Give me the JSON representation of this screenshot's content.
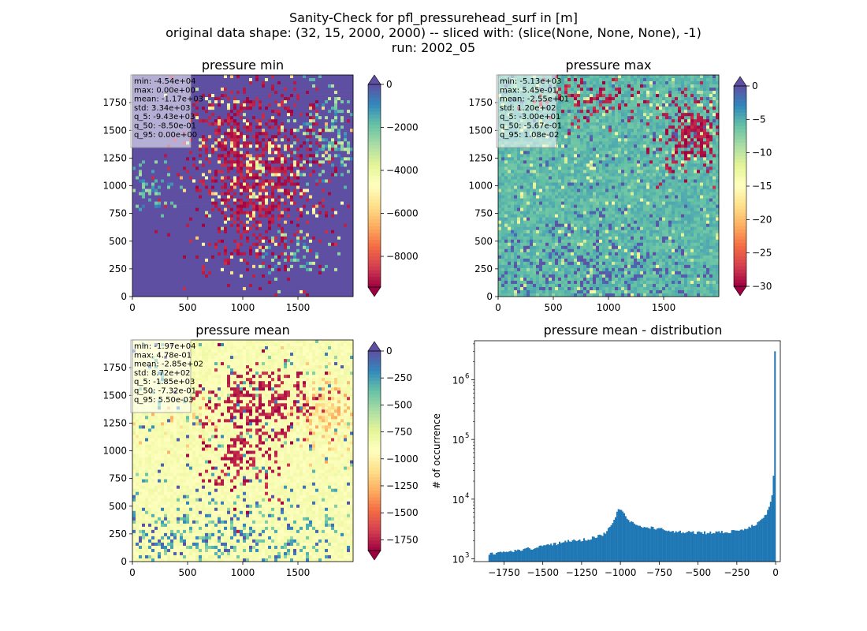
{
  "figure": {
    "title_lines": [
      "Sanity-Check for pfl_pressurehead_surf in [m]",
      "original data shape: (32, 15, 2000, 2000) -- sliced with: (slice(None, None, None), -1)",
      "run: 2002_05"
    ]
  },
  "colors": {
    "spectral": [
      "#9e0142",
      "#d53e4f",
      "#f46d43",
      "#fdae61",
      "#fee08b",
      "#ffffbf",
      "#e6f598",
      "#abdda4",
      "#66c2a5",
      "#3288bd",
      "#5e4fa2"
    ],
    "hist_bar": "#1f77b4",
    "map_under": "#9e0142",
    "map_over": "#5e4fa2"
  },
  "chart_data": [
    {
      "type": "heatmap",
      "name": "pressure-min",
      "title": "pressure min",
      "x_ticks": [
        "0",
        "500",
        "1000",
        "1500"
      ],
      "y_ticks": [
        "0",
        "250",
        "500",
        "750",
        "1000",
        "1250",
        "1500",
        "1750"
      ],
      "xlim": [
        0,
        2000
      ],
      "ylim": [
        0,
        2000
      ],
      "colorbar": {
        "range": [
          -9430,
          0
        ],
        "ticks": [
          0,
          -2000,
          -4000,
          -6000,
          -8000
        ],
        "tick_labels": [
          "0",
          "−2000",
          "−4000",
          "−6000",
          "−8000"
        ],
        "extend": "both"
      },
      "stats": [
        "min: -4.54e+04",
        "max: 0.00e+00",
        "mean: -1.17e+03",
        "std: 3.34e+03",
        "q_5: -9.43e+03",
        "q_50: -8.50e-01",
        "q_95: 0.00e+00"
      ],
      "pattern": "mostly maximum (blue-purple) background; dense minimum-valued (dark red) speckle over central region around x 700-1600, y 450-1800; blue-green patches to the east and west"
    },
    {
      "type": "heatmap",
      "name": "pressure-max",
      "title": "pressure max",
      "x_ticks": [
        "0",
        "500",
        "1000",
        "1500"
      ],
      "y_ticks": [
        "0",
        "250",
        "500",
        "750",
        "1000",
        "1250",
        "1500",
        "1750"
      ],
      "xlim": [
        0,
        2000
      ],
      "ylim": [
        0,
        2000
      ],
      "colorbar": {
        "range": [
          -30,
          0
        ],
        "ticks": [
          0,
          -5,
          -10,
          -15,
          -20,
          -25,
          -30
        ],
        "tick_labels": [
          "0",
          "−5",
          "−10",
          "−15",
          "−20",
          "−25",
          "−30"
        ],
        "extend": "both"
      },
      "stats": [
        "min: -5.13e+03",
        "max: 5.45e-01",
        "mean: -2.55e+01",
        "std: 1.20e+02",
        "q_5: -3.00e+01",
        "q_50: -5.67e-01",
        "q_95: 1.08e-02"
      ],
      "pattern": "mostly pale yellow; dark red cluster in north-east (x 1550-2000, y 1250-1700) and north (x 500-1200, y 1600-1950); scattered blue-purple speckle in the south"
    },
    {
      "type": "heatmap",
      "name": "pressure-mean",
      "title": "pressure mean",
      "x_ticks": [
        "0",
        "500",
        "1000",
        "1500"
      ],
      "y_ticks": [
        "0",
        "250",
        "500",
        "750",
        "1000",
        "1250",
        "1500",
        "1750"
      ],
      "xlim": [
        0,
        2000
      ],
      "ylim": [
        0,
        2000
      ],
      "colorbar": {
        "range": [
          -1850,
          0
        ],
        "ticks": [
          0,
          -250,
          -500,
          -750,
          -1000,
          -1250,
          -1500,
          -1750
        ],
        "tick_labels": [
          "0",
          "−250",
          "−500",
          "−750",
          "−1000",
          "−1250",
          "−1500",
          "−1750"
        ],
        "extend": "both"
      },
      "stats": [
        "min: -1.97e+04",
        "max: 4.78e-01",
        "mean: -2.85e+02",
        "std: 8.72e+02",
        "q_5: -1.85e+03",
        "q_50: -7.32e-01",
        "q_95: 5.50e-03"
      ],
      "pattern": "mostly pale yellow; dark red cluster in north-centre (x 800-1600, y 1250-1650); orange patch in north-east; scattered blue speckle in the south"
    },
    {
      "type": "bar",
      "name": "pressure-mean-distribution",
      "title": "pressure mean - distribution",
      "ylabel": "# of occurrence",
      "yscale": "log",
      "xlim": [
        -1940,
        30
      ],
      "ylim": [
        900,
        4500000
      ],
      "x_ticks": [
        -1750,
        -1500,
        -1250,
        -1000,
        -750,
        -500,
        -250,
        0
      ],
      "x_tick_labels": [
        "−1750",
        "−1500",
        "−1250",
        "−1000",
        "−750",
        "−500",
        "−250",
        "0"
      ],
      "y_ticks": [
        1000,
        10000,
        100000,
        1000000
      ],
      "y_tick_labels": [
        "10",
        "10",
        "10",
        "10"
      ],
      "y_tick_exponents": [
        "3",
        "4",
        "5",
        "6"
      ],
      "bins": {
        "start": -1850,
        "end": 0,
        "width": 9.25
      },
      "profile": [
        [
          -1850,
          1200
        ],
        [
          -1700,
          1350
        ],
        [
          -1500,
          1600
        ],
        [
          -1350,
          1950
        ],
        [
          -1200,
          2150
        ],
        [
          -1100,
          2650
        ],
        [
          -1050,
          3800
        ],
        [
          -1010,
          7000
        ],
        [
          -980,
          6500
        ],
        [
          -950,
          4300
        ],
        [
          -900,
          3700
        ],
        [
          -800,
          3300
        ],
        [
          -700,
          3000
        ],
        [
          -600,
          2800
        ],
        [
          -500,
          2750
        ],
        [
          -400,
          2750
        ],
        [
          -300,
          2850
        ],
        [
          -200,
          3100
        ],
        [
          -120,
          3900
        ],
        [
          -60,
          5500
        ],
        [
          -30,
          9000
        ],
        [
          -15,
          16000
        ],
        [
          0,
          3000000
        ]
      ]
    }
  ]
}
